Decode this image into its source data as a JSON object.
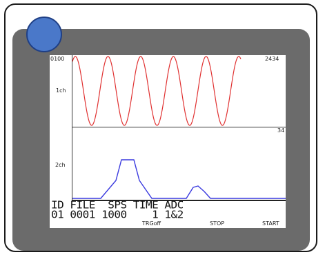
{
  "screen": {
    "top_left_value": "0100",
    "ch1_label": "1ch",
    "ch1_top_right": "2434",
    "ch2_label": "2ch",
    "ch2_top_right": "34",
    "status_header": "ID FILE  SPS TIME ADC",
    "status_values": "01 0001 1000    1 1&2",
    "buttons": {
      "trigger": "TRGoff",
      "stop": "STOP",
      "start": "START"
    }
  },
  "colors": {
    "ch1_trace": "#e03030",
    "ch2_trace": "#3a3adf",
    "power_led": "#4a78c9",
    "bezel": "#6b6b6b"
  },
  "chart_data": [
    {
      "type": "line",
      "series": [
        {
          "name": "1ch",
          "shape": "sine",
          "cycles_shown": 5
        }
      ]
    },
    {
      "type": "line",
      "series": [
        {
          "name": "2ch",
          "shape": "pulses",
          "pulse_count": 2
        }
      ]
    }
  ]
}
